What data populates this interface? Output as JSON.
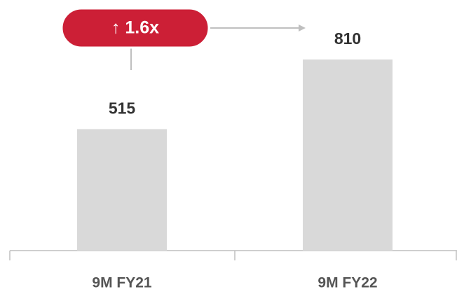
{
  "chart_data": {
    "type": "bar",
    "categories": [
      "9M FY21",
      "9M FY22"
    ],
    "values": [
      515,
      810
    ],
    "color": "#d9d9d9",
    "annotation": "↑ 1.6x",
    "annotation_color": "#cc1f36"
  }
}
